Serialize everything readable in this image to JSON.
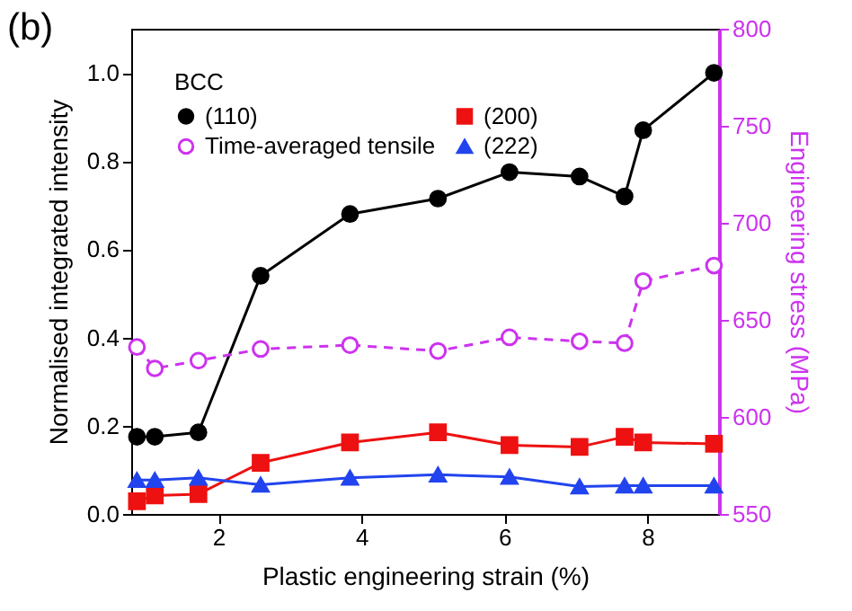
{
  "chart_data": {
    "type": "line",
    "xlabel": "Plastic engineering strain (%)",
    "ylabel": "Normalised integrated intensity",
    "y2label": "Engineering stress (MPa)",
    "legend_title": "BCC",
    "legend": "top left",
    "grid": false,
    "annotations": [
      "(b)"
    ],
    "xlim": [
      0.78,
      9.0
    ],
    "xticks": [
      2,
      4,
      6,
      8
    ],
    "ylim": [
      0,
      1.1
    ],
    "yticks": [
      {
        "value": 0,
        "label": "0.0"
      },
      0.2,
      0.4,
      0.6,
      0.8,
      {
        "value": 1,
        "label": "1.0"
      }
    ],
    "y2lim": [
      550,
      800
    ],
    "y2ticks": [
      550,
      600,
      650,
      700,
      750,
      800
    ],
    "x": [
      0.86,
      1.11,
      1.72,
      2.59,
      3.84,
      5.07,
      6.07,
      7.05,
      7.68,
      7.94,
      8.93
    ],
    "series": [
      {
        "name": "(110)",
        "color": "#000000",
        "marker": "circle",
        "line_style": "solid",
        "values": [
          0.175,
          0.175,
          0.185,
          0.54,
          0.68,
          0.715,
          0.775,
          0.765,
          0.72,
          0.87,
          1.0
        ]
      },
      {
        "name": "Time-averaged tensile",
        "color": "#cc33ee",
        "marker": "circle",
        "line_style": "dashed",
        "axis": "y2",
        "values": [
          636,
          625,
          629,
          635,
          637,
          634,
          641,
          639,
          638,
          670,
          678
        ]
      },
      {
        "name": "(200)",
        "color": "#ee1111",
        "marker": "square",
        "line_style": "solid",
        "values": [
          0.029,
          0.042,
          0.045,
          0.116,
          0.162,
          0.185,
          0.156,
          0.152,
          0.175,
          0.162,
          0.159
        ]
      },
      {
        "name": "(222)",
        "color": "#2244ee",
        "marker": "triangle",
        "line_style": "solid",
        "values": [
          0.077,
          0.077,
          0.082,
          0.066,
          0.082,
          0.089,
          0.084,
          0.062,
          0.064,
          0.064,
          0.064
        ]
      }
    ]
  }
}
